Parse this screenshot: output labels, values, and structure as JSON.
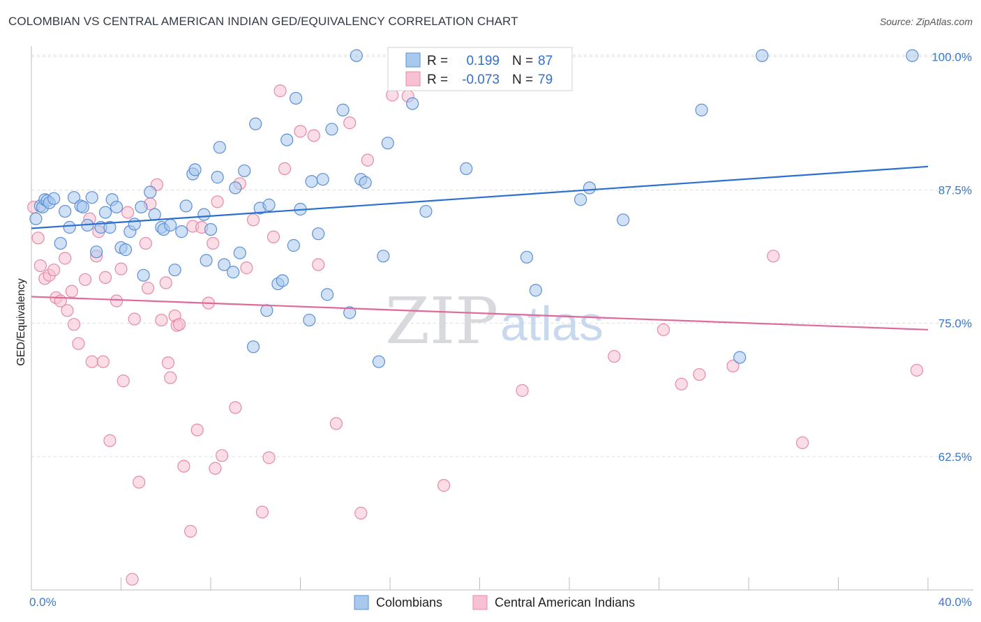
{
  "header": {
    "title": "COLOMBIAN VS CENTRAL AMERICAN INDIAN GED/EQUIVALENCY CORRELATION CHART",
    "source": "Source: ZipAtlas.com"
  },
  "watermark": {
    "zip": "ZIP",
    "atlas": "atlas"
  },
  "legend": {
    "rows": [
      {
        "r_label": "R =",
        "r_value": "0.199",
        "n_label": "N =",
        "n_value": "87"
      },
      {
        "r_label": "R =",
        "r_value": "-0.073",
        "n_label": "N =",
        "n_value": "79"
      }
    ]
  },
  "bottom_legend": [
    "Colombians",
    "Central American Indians"
  ],
  "colors": {
    "blue_fill": "#a9c8ee",
    "blue_stroke": "#5b8fd6",
    "blue_line": "#2c6fd1",
    "pink_fill": "#f8c1d2",
    "pink_stroke": "#e589a8",
    "pink_line": "#e0699a",
    "tick_text": "#3a78c9",
    "grid": "#dcdcdc"
  },
  "chart_data": {
    "type": "scatter",
    "title": "COLOMBIAN VS CENTRAL AMERICAN INDIAN GED/EQUIVALENCY CORRELATION CHART",
    "xlabel": "",
    "ylabel": "GED/Equivalency",
    "xlim": [
      0,
      40
    ],
    "ylim": [
      50,
      101
    ],
    "x_tick_labels": [
      "0.0%",
      "40.0%"
    ],
    "y_ticks": [
      62.5,
      75.0,
      87.5,
      100.0
    ],
    "y_tick_labels": [
      "62.5%",
      "75.0%",
      "87.5%",
      "100.0%"
    ],
    "grid": true,
    "legend_position": "top-center",
    "series": [
      {
        "name": "Colombians",
        "r": 0.199,
        "n": 87,
        "trend": {
          "x": [
            0,
            40
          ],
          "y": [
            83.9,
            89.7
          ]
        },
        "points": [
          [
            0.2,
            84.8
          ],
          [
            0.4,
            86.0
          ],
          [
            0.5,
            85.9
          ],
          [
            0.6,
            86.6
          ],
          [
            0.7,
            86.5
          ],
          [
            0.8,
            86.3
          ],
          [
            1.0,
            86.7
          ],
          [
            1.3,
            82.5
          ],
          [
            1.5,
            85.5
          ],
          [
            1.7,
            84.0
          ],
          [
            1.9,
            86.8
          ],
          [
            2.2,
            86.0
          ],
          [
            2.3,
            85.9
          ],
          [
            2.5,
            84.2
          ],
          [
            2.7,
            86.8
          ],
          [
            2.9,
            81.7
          ],
          [
            3.1,
            84.0
          ],
          [
            3.3,
            85.4
          ],
          [
            3.5,
            84.0
          ],
          [
            3.6,
            86.6
          ],
          [
            3.8,
            85.9
          ],
          [
            4.0,
            82.1
          ],
          [
            4.2,
            81.9
          ],
          [
            4.4,
            83.6
          ],
          [
            4.6,
            84.3
          ],
          [
            4.9,
            85.9
          ],
          [
            5.0,
            79.5
          ],
          [
            5.3,
            87.3
          ],
          [
            5.5,
            85.2
          ],
          [
            5.8,
            84.0
          ],
          [
            5.9,
            83.8
          ],
          [
            6.2,
            84.2
          ],
          [
            6.4,
            80.0
          ],
          [
            6.7,
            83.6
          ],
          [
            6.9,
            86.0
          ],
          [
            7.2,
            89.0
          ],
          [
            7.3,
            89.4
          ],
          [
            7.7,
            85.2
          ],
          [
            7.8,
            80.9
          ],
          [
            8.0,
            83.8
          ],
          [
            8.3,
            88.7
          ],
          [
            8.4,
            91.5
          ],
          [
            8.6,
            80.5
          ],
          [
            9.0,
            79.8
          ],
          [
            9.1,
            87.7
          ],
          [
            9.3,
            81.6
          ],
          [
            9.5,
            89.3
          ],
          [
            9.9,
            72.8
          ],
          [
            10.0,
            93.7
          ],
          [
            10.2,
            85.8
          ],
          [
            10.5,
            76.2
          ],
          [
            10.6,
            86.1
          ],
          [
            11.0,
            78.7
          ],
          [
            11.2,
            79.0
          ],
          [
            11.4,
            92.2
          ],
          [
            11.7,
            82.3
          ],
          [
            11.8,
            96.1
          ],
          [
            12.0,
            85.7
          ],
          [
            12.4,
            75.3
          ],
          [
            12.5,
            88.3
          ],
          [
            12.8,
            83.4
          ],
          [
            13.0,
            88.5
          ],
          [
            13.2,
            77.7
          ],
          [
            13.4,
            93.2
          ],
          [
            13.9,
            95.0
          ],
          [
            14.2,
            76.0
          ],
          [
            14.5,
            100.1
          ],
          [
            14.7,
            88.5
          ],
          [
            14.9,
            88.2
          ],
          [
            15.5,
            71.4
          ],
          [
            15.7,
            81.3
          ],
          [
            15.9,
            91.9
          ],
          [
            17.0,
            95.6
          ],
          [
            17.6,
            85.5
          ],
          [
            19.4,
            89.5
          ],
          [
            22.1,
            81.2
          ],
          [
            22.5,
            78.1
          ],
          [
            24.5,
            86.6
          ],
          [
            24.9,
            87.7
          ],
          [
            26.4,
            84.7
          ],
          [
            29.9,
            95.0
          ],
          [
            31.6,
            71.8
          ],
          [
            32.6,
            100.1
          ],
          [
            39.3,
            100.1
          ]
        ]
      },
      {
        "name": "Central American Indians",
        "r": -0.073,
        "n": 79,
        "trend": {
          "x": [
            0,
            40
          ],
          "y": [
            77.5,
            74.4
          ]
        },
        "points": [
          [
            0.1,
            85.9
          ],
          [
            0.3,
            83.0
          ],
          [
            0.4,
            80.4
          ],
          [
            0.6,
            79.2
          ],
          [
            0.8,
            79.5
          ],
          [
            1.0,
            80.0
          ],
          [
            1.1,
            77.4
          ],
          [
            1.3,
            77.1
          ],
          [
            1.5,
            81.1
          ],
          [
            1.6,
            76.2
          ],
          [
            1.8,
            78.0
          ],
          [
            1.9,
            74.9
          ],
          [
            2.1,
            73.1
          ],
          [
            2.4,
            79.1
          ],
          [
            2.6,
            84.8
          ],
          [
            2.7,
            71.4
          ],
          [
            2.9,
            81.3
          ],
          [
            3.0,
            83.6
          ],
          [
            3.2,
            71.4
          ],
          [
            3.3,
            79.3
          ],
          [
            3.5,
            64.0
          ],
          [
            3.8,
            77.1
          ],
          [
            4.0,
            80.1
          ],
          [
            4.1,
            69.6
          ],
          [
            4.3,
            85.4
          ],
          [
            4.5,
            51.0
          ],
          [
            4.6,
            75.4
          ],
          [
            4.8,
            60.1
          ],
          [
            5.1,
            82.5
          ],
          [
            5.2,
            78.3
          ],
          [
            5.3,
            86.2
          ],
          [
            5.6,
            88.0
          ],
          [
            5.8,
            75.3
          ],
          [
            6.0,
            78.8
          ],
          [
            6.1,
            71.3
          ],
          [
            6.2,
            69.9
          ],
          [
            6.4,
            75.7
          ],
          [
            6.5,
            74.8
          ],
          [
            6.6,
            74.9
          ],
          [
            6.8,
            61.6
          ],
          [
            7.1,
            55.5
          ],
          [
            7.2,
            84.1
          ],
          [
            7.4,
            65.0
          ],
          [
            7.6,
            84.0
          ],
          [
            7.9,
            76.9
          ],
          [
            8.1,
            82.5
          ],
          [
            8.2,
            61.4
          ],
          [
            8.3,
            86.4
          ],
          [
            8.5,
            62.6
          ],
          [
            9.1,
            67.1
          ],
          [
            9.3,
            88.1
          ],
          [
            9.6,
            80.2
          ],
          [
            9.9,
            84.7
          ],
          [
            10.3,
            57.3
          ],
          [
            10.6,
            62.4
          ],
          [
            10.8,
            83.1
          ],
          [
            11.1,
            96.8
          ],
          [
            11.3,
            89.5
          ],
          [
            12.0,
            93.0
          ],
          [
            12.6,
            92.6
          ],
          [
            12.8,
            80.5
          ],
          [
            13.6,
            65.6
          ],
          [
            14.2,
            93.8
          ],
          [
            14.7,
            57.2
          ],
          [
            15.0,
            90.3
          ],
          [
            16.1,
            96.4
          ],
          [
            16.8,
            96.3
          ],
          [
            17.3,
            100.0
          ],
          [
            18.4,
            59.8
          ],
          [
            21.9,
            68.7
          ],
          [
            26.0,
            71.9
          ],
          [
            28.2,
            74.4
          ],
          [
            29.0,
            69.3
          ],
          [
            29.8,
            70.2
          ],
          [
            31.3,
            71.0
          ],
          [
            33.1,
            81.3
          ],
          [
            34.4,
            63.8
          ],
          [
            39.5,
            70.6
          ]
        ]
      }
    ]
  }
}
